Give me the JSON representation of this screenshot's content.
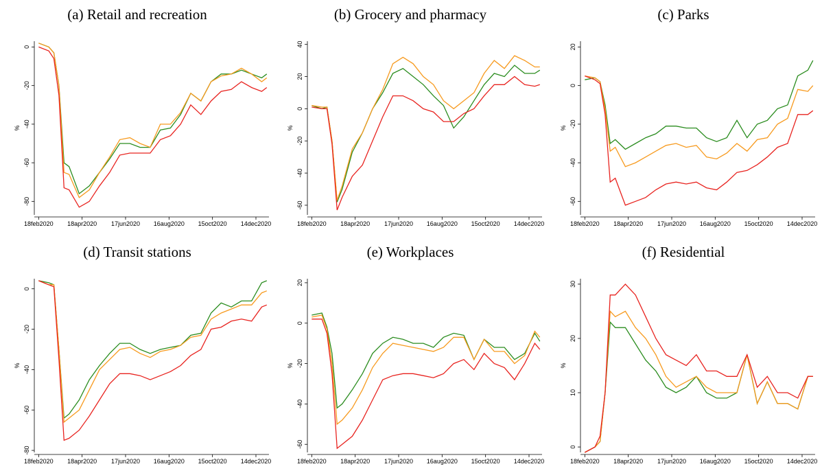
{
  "chart_data": [
    {
      "type": "line",
      "title": "(a) Retail and recreation",
      "y_label": "%",
      "x": [
        "2020-02-18",
        "2020-03-03",
        "2020-03-10",
        "2020-03-17",
        "2020-03-24",
        "2020-03-31",
        "2020-04-14",
        "2020-04-28",
        "2020-05-12",
        "2020-05-26",
        "2020-06-09",
        "2020-06-23",
        "2020-07-07",
        "2020-07-21",
        "2020-08-04",
        "2020-08-18",
        "2020-09-01",
        "2020-09-15",
        "2020-09-29",
        "2020-10-13",
        "2020-10-27",
        "2020-11-10",
        "2020-11-24",
        "2020-12-08",
        "2020-12-22",
        "2020-12-29"
      ],
      "xlim": [
        "2020-02-12",
        "2021-01-01"
      ],
      "xticks": [
        {
          "value": "2020-02-18",
          "label": "18feb2020"
        },
        {
          "value": "2020-04-18",
          "label": "18apr2020"
        },
        {
          "value": "2020-06-17",
          "label": "17jun2020"
        },
        {
          "value": "2020-08-16",
          "label": "16aug2020"
        },
        {
          "value": "2020-10-15",
          "label": "15oct2020"
        },
        {
          "value": "2020-12-14",
          "label": "14dec2020"
        }
      ],
      "ylim": [
        -87,
        3
      ],
      "yticks": [
        0,
        -20,
        -40,
        -60,
        -80
      ],
      "series": [
        {
          "color": "#2a8c1e",
          "values": [
            2,
            0,
            -3,
            -20,
            -60,
            -62,
            -76,
            -72,
            -65,
            -58,
            -50,
            -50,
            -52,
            -52,
            -43,
            -42,
            -35,
            -24,
            -28,
            -18,
            -14,
            -14,
            -12,
            -14,
            -16,
            -14
          ]
        },
        {
          "color": "#f79a1e",
          "values": [
            2,
            0,
            -3,
            -20,
            -65,
            -66,
            -78,
            -74,
            -65,
            -57,
            -48,
            -47,
            -50,
            -52,
            -40,
            -40,
            -34,
            -24,
            -28,
            -18,
            -15,
            -14,
            -11,
            -14,
            -18,
            -16
          ]
        },
        {
          "color": "#e8231f",
          "values": [
            0,
            -2,
            -6,
            -25,
            -73,
            -74,
            -83,
            -80,
            -72,
            -65,
            -56,
            -55,
            -55,
            -55,
            -48,
            -46,
            -40,
            -30,
            -35,
            -28,
            -23,
            -22,
            -18,
            -21,
            -23,
            -21
          ]
        }
      ]
    },
    {
      "type": "line",
      "title": "(b) Grocery and pharmacy",
      "y_label": "%",
      "x": [
        "2020-02-18",
        "2020-03-03",
        "2020-03-10",
        "2020-03-17",
        "2020-03-24",
        "2020-03-31",
        "2020-04-14",
        "2020-04-28",
        "2020-05-12",
        "2020-05-26",
        "2020-06-09",
        "2020-06-23",
        "2020-07-07",
        "2020-07-21",
        "2020-08-04",
        "2020-08-18",
        "2020-09-01",
        "2020-09-15",
        "2020-09-29",
        "2020-10-13",
        "2020-10-27",
        "2020-11-10",
        "2020-11-24",
        "2020-12-08",
        "2020-12-22",
        "2020-12-29"
      ],
      "xlim": [
        "2020-02-12",
        "2021-01-01"
      ],
      "xticks": [
        {
          "value": "2020-02-18",
          "label": "18feb2020"
        },
        {
          "value": "2020-04-18",
          "label": "18apr2020"
        },
        {
          "value": "2020-06-17",
          "label": "17jun2020"
        },
        {
          "value": "2020-08-16",
          "label": "16aug2020"
        },
        {
          "value": "2020-10-15",
          "label": "15oct2020"
        },
        {
          "value": "2020-12-14",
          "label": "14dec2020"
        }
      ],
      "ylim": [
        -66,
        42
      ],
      "yticks": [
        -60,
        -40,
        -20,
        0,
        20,
        40
      ],
      "series": [
        {
          "color": "#2a8c1e",
          "values": [
            2,
            0,
            1,
            -20,
            -58,
            -50,
            -27,
            -15,
            0,
            10,
            22,
            25,
            20,
            15,
            8,
            2,
            -12,
            -5,
            5,
            15,
            22,
            20,
            27,
            22,
            22,
            24
          ]
        },
        {
          "color": "#f79a1e",
          "values": [
            2,
            1,
            1,
            -20,
            -57,
            -48,
            -25,
            -15,
            0,
            12,
            28,
            32,
            28,
            20,
            15,
            5,
            0,
            5,
            10,
            22,
            30,
            25,
            33,
            30,
            26,
            26
          ]
        },
        {
          "color": "#e8231f",
          "values": [
            1,
            0,
            0,
            -22,
            -63,
            -55,
            -42,
            -35,
            -20,
            -5,
            8,
            8,
            5,
            0,
            -2,
            -8,
            -8,
            -3,
            0,
            8,
            15,
            15,
            20,
            15,
            14,
            15
          ]
        }
      ]
    },
    {
      "type": "line",
      "title": "(c) Parks",
      "y_label": "%",
      "x": [
        "2020-02-18",
        "2020-03-03",
        "2020-03-10",
        "2020-03-17",
        "2020-03-24",
        "2020-03-31",
        "2020-04-14",
        "2020-04-28",
        "2020-05-12",
        "2020-05-26",
        "2020-06-09",
        "2020-06-23",
        "2020-07-07",
        "2020-07-21",
        "2020-08-04",
        "2020-08-18",
        "2020-09-01",
        "2020-09-15",
        "2020-09-29",
        "2020-10-13",
        "2020-10-27",
        "2020-11-10",
        "2020-11-24",
        "2020-12-08",
        "2020-12-22",
        "2020-12-29"
      ],
      "xlim": [
        "2020-02-12",
        "2021-01-01"
      ],
      "xticks": [
        {
          "value": "2020-02-18",
          "label": "18feb2020"
        },
        {
          "value": "2020-04-18",
          "label": "18apr2020"
        },
        {
          "value": "2020-06-17",
          "label": "17jun2020"
        },
        {
          "value": "2020-08-16",
          "label": "16aug2020"
        },
        {
          "value": "2020-10-15",
          "label": "15oct2020"
        },
        {
          "value": "2020-12-14",
          "label": "14dec2020"
        }
      ],
      "ylim": [
        -67,
        23
      ],
      "yticks": [
        20,
        0,
        -20,
        -40,
        -60
      ],
      "series": [
        {
          "color": "#2a8c1e",
          "values": [
            3,
            4,
            2,
            -10,
            -30,
            -28,
            -33,
            -30,
            -27,
            -25,
            -21,
            -21,
            -22,
            -22,
            -27,
            -29,
            -27,
            -18,
            -27,
            -20,
            -18,
            -12,
            -10,
            5,
            8,
            13
          ]
        },
        {
          "color": "#f79a1e",
          "values": [
            5,
            4,
            2,
            -12,
            -34,
            -32,
            -42,
            -40,
            -37,
            -34,
            -31,
            -30,
            -32,
            -31,
            -37,
            -38,
            -35,
            -30,
            -34,
            -28,
            -27,
            -20,
            -17,
            -2,
            -3,
            0
          ]
        },
        {
          "color": "#e8231f",
          "values": [
            5,
            3,
            1,
            -15,
            -50,
            -48,
            -62,
            -60,
            -58,
            -54,
            -51,
            -50,
            -51,
            -50,
            -53,
            -54,
            -50,
            -45,
            -44,
            -41,
            -37,
            -32,
            -30,
            -15,
            -15,
            -13
          ]
        }
      ]
    },
    {
      "type": "line",
      "title": "(d) Transit stations",
      "y_label": "%",
      "x": [
        "2020-02-18",
        "2020-03-03",
        "2020-03-10",
        "2020-03-17",
        "2020-03-24",
        "2020-03-31",
        "2020-04-14",
        "2020-04-28",
        "2020-05-12",
        "2020-05-26",
        "2020-06-09",
        "2020-06-23",
        "2020-07-07",
        "2020-07-21",
        "2020-08-04",
        "2020-08-18",
        "2020-09-01",
        "2020-09-15",
        "2020-09-29",
        "2020-10-13",
        "2020-10-27",
        "2020-11-10",
        "2020-11-24",
        "2020-12-08",
        "2020-12-22",
        "2020-12-29"
      ],
      "xlim": [
        "2020-02-12",
        "2021-01-01"
      ],
      "xticks": [
        {
          "value": "2020-02-18",
          "label": "18feb2020"
        },
        {
          "value": "2020-04-18",
          "label": "18apr2020"
        },
        {
          "value": "2020-06-17",
          "label": "17jun2020"
        },
        {
          "value": "2020-08-16",
          "label": "16aug2020"
        },
        {
          "value": "2020-10-15",
          "label": "15oct2020"
        },
        {
          "value": "2020-12-14",
          "label": "14dec2020"
        }
      ],
      "ylim": [
        -81,
        5
      ],
      "yticks": [
        0,
        -20,
        -40,
        -60,
        -80
      ],
      "series": [
        {
          "color": "#2a8c1e",
          "values": [
            4,
            3,
            2,
            -30,
            -64,
            -62,
            -55,
            -45,
            -38,
            -32,
            -27,
            -27,
            -30,
            -32,
            -30,
            -29,
            -28,
            -23,
            -22,
            -12,
            -7,
            -9,
            -6,
            -6,
            3,
            4
          ]
        },
        {
          "color": "#f79a1e",
          "values": [
            4,
            2,
            2,
            -30,
            -66,
            -64,
            -60,
            -50,
            -40,
            -35,
            -30,
            -29,
            -32,
            -34,
            -31,
            -30,
            -28,
            -24,
            -23,
            -15,
            -12,
            -10,
            -8,
            -8,
            -2,
            -1
          ]
        },
        {
          "color": "#e8231f",
          "values": [
            4,
            2,
            1,
            -35,
            -75,
            -74,
            -70,
            -63,
            -55,
            -47,
            -42,
            -42,
            -43,
            -45,
            -43,
            -41,
            -38,
            -33,
            -30,
            -20,
            -19,
            -16,
            -15,
            -16,
            -9,
            -8
          ]
        }
      ]
    },
    {
      "type": "line",
      "title": "(e) Workplaces",
      "y_label": "%",
      "x": [
        "2020-02-18",
        "2020-03-03",
        "2020-03-10",
        "2020-03-17",
        "2020-03-24",
        "2020-03-31",
        "2020-04-14",
        "2020-04-28",
        "2020-05-12",
        "2020-05-26",
        "2020-06-09",
        "2020-06-23",
        "2020-07-07",
        "2020-07-21",
        "2020-08-04",
        "2020-08-18",
        "2020-09-01",
        "2020-09-15",
        "2020-09-29",
        "2020-10-13",
        "2020-10-27",
        "2020-11-10",
        "2020-11-24",
        "2020-12-08",
        "2020-12-22",
        "2020-12-29"
      ],
      "xlim": [
        "2020-02-12",
        "2021-01-01"
      ],
      "xticks": [
        {
          "value": "2020-02-18",
          "label": "18feb2020"
        },
        {
          "value": "2020-04-18",
          "label": "18apr2020"
        },
        {
          "value": "2020-06-17",
          "label": "17jun2020"
        },
        {
          "value": "2020-08-16",
          "label": "16aug2020"
        },
        {
          "value": "2020-10-15",
          "label": "15oct2020"
        },
        {
          "value": "2020-12-14",
          "label": "14dec2020"
        }
      ],
      "ylim": [
        -64,
        22
      ],
      "yticks": [
        20,
        0,
        -20,
        -40,
        -60
      ],
      "series": [
        {
          "color": "#2a8c1e",
          "values": [
            4,
            5,
            -2,
            -15,
            -42,
            -40,
            -33,
            -25,
            -15,
            -10,
            -7,
            -8,
            -10,
            -10,
            -12,
            -7,
            -5,
            -6,
            -18,
            -8,
            -12,
            -12,
            -18,
            -15,
            -5,
            -9
          ]
        },
        {
          "color": "#f79a1e",
          "values": [
            3,
            4,
            -3,
            -20,
            -50,
            -48,
            -42,
            -33,
            -22,
            -15,
            -10,
            -11,
            -12,
            -13,
            -14,
            -12,
            -7,
            -7,
            -18,
            -8,
            -14,
            -14,
            -20,
            -16,
            -4,
            -7
          ]
        },
        {
          "color": "#e8231f",
          "values": [
            2,
            2,
            -5,
            -25,
            -62,
            -60,
            -56,
            -48,
            -38,
            -28,
            -26,
            -25,
            -25,
            -26,
            -27,
            -25,
            -20,
            -18,
            -23,
            -15,
            -20,
            -22,
            -28,
            -20,
            -10,
            -13
          ]
        }
      ]
    },
    {
      "type": "line",
      "title": "(f) Residential",
      "y_label": "%",
      "x": [
        "2020-02-18",
        "2020-03-03",
        "2020-03-10",
        "2020-03-17",
        "2020-03-24",
        "2020-03-31",
        "2020-04-14",
        "2020-04-28",
        "2020-05-12",
        "2020-05-26",
        "2020-06-09",
        "2020-06-23",
        "2020-07-07",
        "2020-07-21",
        "2020-08-04",
        "2020-08-18",
        "2020-09-01",
        "2020-09-15",
        "2020-09-29",
        "2020-10-13",
        "2020-10-27",
        "2020-11-10",
        "2020-11-24",
        "2020-12-08",
        "2020-12-22",
        "2020-12-29"
      ],
      "xlim": [
        "2020-02-12",
        "2021-01-01"
      ],
      "xticks": [
        {
          "value": "2020-02-18",
          "label": "18feb2020"
        },
        {
          "value": "2020-04-18",
          "label": "18apr2020"
        },
        {
          "value": "2020-06-17",
          "label": "17jun2020"
        },
        {
          "value": "2020-08-16",
          "label": "16aug2020"
        },
        {
          "value": "2020-10-15",
          "label": "15oct2020"
        },
        {
          "value": "2020-12-14",
          "label": "14dec2020"
        }
      ],
      "ylim": [
        -1,
        31
      ],
      "yticks": [
        0,
        10,
        20,
        30
      ],
      "series": [
        {
          "color": "#2a8c1e",
          "values": [
            -1,
            0,
            1,
            10,
            23,
            22,
            22,
            19,
            16,
            14,
            11,
            10,
            11,
            13,
            10,
            9,
            9,
            10,
            17,
            8,
            12,
            8,
            8,
            7,
            13,
            13
          ]
        },
        {
          "color": "#f79a1e",
          "values": [
            -1,
            0,
            1,
            10,
            25,
            24,
            25,
            22,
            20,
            17,
            13,
            11,
            12,
            13,
            11,
            10,
            10,
            10,
            17,
            8,
            12,
            8,
            8,
            7,
            13,
            13
          ]
        },
        {
          "color": "#e8231f",
          "values": [
            -1,
            0,
            2,
            10,
            28,
            28,
            30,
            28,
            24,
            20,
            17,
            16,
            15,
            17,
            14,
            14,
            13,
            13,
            17,
            11,
            13,
            10,
            10,
            9,
            13,
            13
          ]
        }
      ]
    }
  ]
}
